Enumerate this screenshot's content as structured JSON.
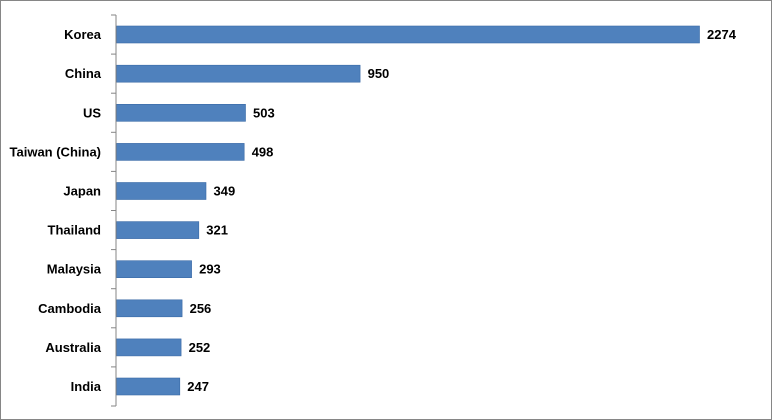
{
  "chart_data": {
    "type": "bar",
    "orientation": "horizontal",
    "categories": [
      "Korea",
      "China",
      "US",
      "Taiwan (China)",
      "Japan",
      "Thailand",
      "Malaysia",
      "Cambodia",
      "Australia",
      "India"
    ],
    "values": [
      2274,
      950,
      503,
      498,
      349,
      321,
      293,
      256,
      252,
      247
    ],
    "title": "",
    "xlabel": "",
    "ylabel": "",
    "xlim": [
      0,
      2400
    ],
    "grid": false,
    "legend": "none",
    "data_labels": true,
    "colors": {
      "bar": "#4F81BD",
      "bar_border": "#3A6AA6",
      "axis": "#868686",
      "frame": "#868686"
    }
  }
}
